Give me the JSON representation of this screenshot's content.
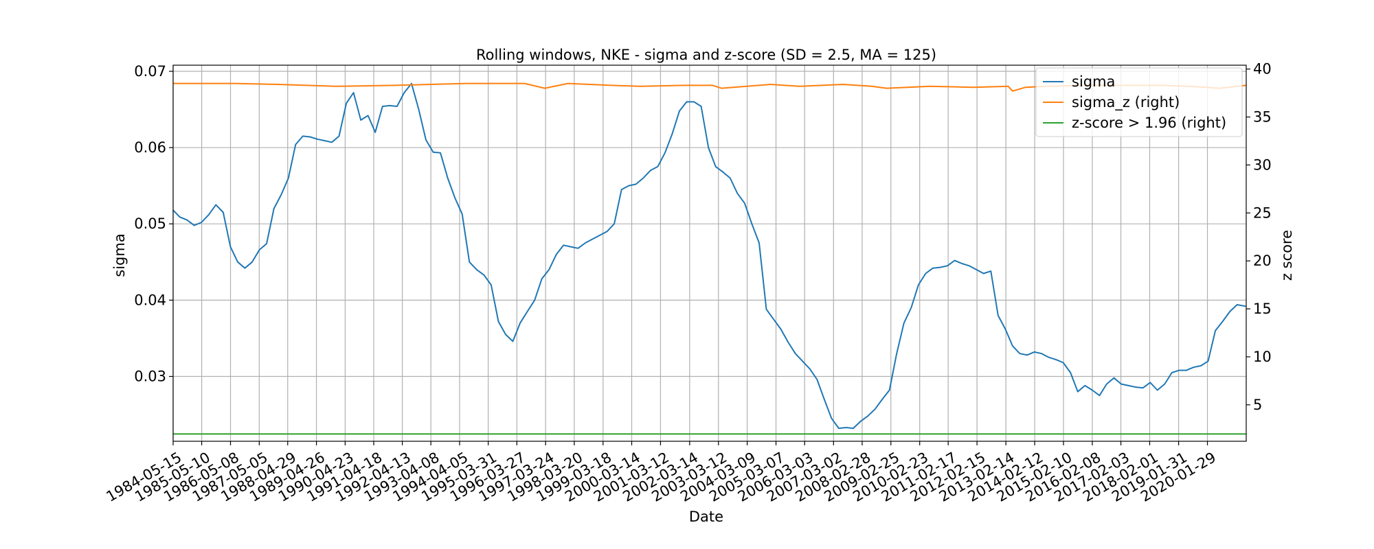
{
  "chart_data": {
    "type": "line",
    "title": "Rolling windows, NKE - sigma and z-score (SD = 2.5, MA = 125)",
    "xlabel": "Date",
    "ylabel": "sigma",
    "ylabel_right": "z score",
    "x_range": [
      "1984-05-15",
      "2021-05-31"
    ],
    "ylim": [
      0.0215,
      0.0708
    ],
    "ylim_right": [
      1.2,
      40.4
    ],
    "y_ticks": [
      0.03,
      0.04,
      0.05,
      0.06,
      0.07
    ],
    "y_tick_labels": [
      "0.03",
      "0.04",
      "0.05",
      "0.06",
      "0.07"
    ],
    "y_ticks_right": [
      5,
      10,
      15,
      20,
      25,
      30,
      35,
      40
    ],
    "y_tick_labels_right": [
      "5",
      "10",
      "15",
      "20",
      "25",
      "30",
      "35",
      "40"
    ],
    "x_tick_labels": [
      "1984-05-15",
      "1985-05-10",
      "1986-05-08",
      "1987-05-05",
      "1988-04-29",
      "1989-04-26",
      "1990-04-23",
      "1991-04-18",
      "1992-04-13",
      "1993-04-08",
      "1994-04-05",
      "1995-03-31",
      "1996-03-27",
      "1997-03-24",
      "1998-03-20",
      "1999-03-18",
      "2000-03-14",
      "2001-03-12",
      "2002-03-14",
      "2003-03-12",
      "2004-03-09",
      "2005-03-07",
      "2006-03-03",
      "2007-03-02",
      "2008-02-28",
      "2009-02-25",
      "2010-02-23",
      "2011-02-17",
      "2012-02-15",
      "2013-02-14",
      "2014-02-12",
      "2015-02-10",
      "2016-02-08",
      "2017-02-03",
      "2018-02-01",
      "2019-01-31",
      "2020-01-29"
    ],
    "grid": true,
    "legend_position": "top-right",
    "series": [
      {
        "name": "sigma",
        "axis": "left",
        "color": "#1f77b4",
        "x": [
          1984.37,
          1984.6,
          1984.85,
          1985.1,
          1985.35,
          1985.6,
          1985.85,
          1986.1,
          1986.35,
          1986.6,
          1986.85,
          1987.1,
          1987.35,
          1987.6,
          1987.85,
          1988.1,
          1988.35,
          1988.6,
          1988.85,
          1989.1,
          1989.35,
          1989.6,
          1989.85,
          1990.1,
          1990.35,
          1990.6,
          1990.85,
          1991.1,
          1991.35,
          1991.6,
          1991.85,
          1992.1,
          1992.35,
          1992.6,
          1992.85,
          1993.1,
          1993.35,
          1993.6,
          1993.85,
          1994.1,
          1994.35,
          1994.6,
          1994.85,
          1995.1,
          1995.35,
          1995.6,
          1995.85,
          1996.1,
          1996.35,
          1996.6,
          1996.85,
          1997.1,
          1997.35,
          1997.6,
          1997.85,
          1998.1,
          1998.35,
          1998.6,
          1998.85,
          1999.1,
          1999.35,
          1999.6,
          1999.85,
          2000.1,
          2000.35,
          2000.6,
          2000.85,
          2001.1,
          2001.35,
          2001.6,
          2001.85,
          2002.1,
          2002.35,
          2002.6,
          2002.85,
          2003.1,
          2003.35,
          2003.6,
          2003.85,
          2004.1,
          2004.35,
          2004.6,
          2004.85,
          2005.1,
          2005.35,
          2005.6,
          2005.85,
          2006.1,
          2006.35,
          2006.6,
          2006.85,
          2007.1,
          2007.35,
          2007.6,
          2007.85,
          2008.1,
          2008.35,
          2008.6,
          2008.85,
          2009.1,
          2009.35,
          2009.6,
          2009.85,
          2010.1,
          2010.35,
          2010.6,
          2010.85,
          2011.1,
          2011.35,
          2011.6,
          2011.85,
          2012.1,
          2012.35,
          2012.6,
          2012.85,
          2013.1,
          2013.35,
          2013.6,
          2013.85,
          2014.1,
          2014.35,
          2014.6,
          2014.85,
          2015.1,
          2015.35,
          2015.6,
          2015.85,
          2016.1,
          2016.35,
          2016.6,
          2016.85,
          2017.1,
          2017.35,
          2017.6,
          2017.85,
          2018.1,
          2018.35,
          2018.6,
          2018.85,
          2019.1,
          2019.35,
          2019.6,
          2019.85,
          2020.1,
          2020.35,
          2020.6,
          2020.85,
          2021.1,
          2021.4
        ],
        "values": [
          0.0518,
          0.0509,
          0.0505,
          0.0498,
          0.0502,
          0.0512,
          0.0525,
          0.0515,
          0.047,
          0.045,
          0.0442,
          0.045,
          0.0466,
          0.0474,
          0.052,
          0.0538,
          0.056,
          0.0604,
          0.0615,
          0.0614,
          0.0611,
          0.0609,
          0.0607,
          0.0615,
          0.0658,
          0.0672,
          0.0636,
          0.0642,
          0.062,
          0.0654,
          0.0655,
          0.0654,
          0.0672,
          0.0684,
          0.065,
          0.061,
          0.0594,
          0.0593,
          0.056,
          0.0534,
          0.0513,
          0.045,
          0.044,
          0.0433,
          0.042,
          0.0372,
          0.0355,
          0.0346,
          0.037,
          0.0385,
          0.04,
          0.0428,
          0.044,
          0.046,
          0.0472,
          0.047,
          0.0468,
          0.0475,
          0.048,
          0.0485,
          0.049,
          0.05,
          0.0545,
          0.055,
          0.0552,
          0.056,
          0.057,
          0.0575,
          0.0593,
          0.0618,
          0.0648,
          0.066,
          0.066,
          0.0654,
          0.06,
          0.0575,
          0.0568,
          0.056,
          0.054,
          0.0527,
          0.05,
          0.0475,
          0.0388,
          0.0375,
          0.0362,
          0.0345,
          0.033,
          0.032,
          0.031,
          0.0296,
          0.027,
          0.0245,
          0.0232,
          0.0233,
          0.0232,
          0.0241,
          0.0248,
          0.0257,
          0.027,
          0.0282,
          0.033,
          0.037,
          0.039,
          0.042,
          0.0435,
          0.0442,
          0.0443,
          0.0445,
          0.0452,
          0.0448,
          0.0445,
          0.044,
          0.0435,
          0.0438,
          0.038,
          0.0362,
          0.034,
          0.033,
          0.0328,
          0.0332,
          0.033,
          0.0325,
          0.0322,
          0.0318,
          0.0305,
          0.028,
          0.0288,
          0.0282,
          0.0275,
          0.029,
          0.0298,
          0.029,
          0.0288,
          0.0286,
          0.0285,
          0.0292,
          0.0282,
          0.029,
          0.0305,
          0.0308,
          0.0308,
          0.0312,
          0.0314,
          0.032,
          0.036,
          0.0372,
          0.0385,
          0.0394,
          0.0392
        ]
      },
      {
        "name": "sigma_z (right)",
        "axis": "right",
        "color": "#ff7f0e",
        "x": [
          1984.37,
          1986.5,
          1988.0,
          1990.0,
          1992.0,
          1994.5,
          1996.5,
          1997.2,
          1998.0,
          1999.5,
          2000.5,
          2002.0,
          2003.0,
          2003.3,
          2005.0,
          2006.0,
          2007.5,
          2008.5,
          2009.0,
          2010.5,
          2012.0,
          2013.2,
          2013.35,
          2013.8,
          2014.5,
          2016.0,
          2017.0,
          2018.5,
          2019.5,
          2020.5,
          2021.4
        ],
        "values": [
          38.5,
          38.5,
          38.4,
          38.2,
          38.3,
          38.5,
          38.5,
          38.0,
          38.5,
          38.3,
          38.2,
          38.3,
          38.3,
          38.0,
          38.4,
          38.2,
          38.4,
          38.2,
          38.0,
          38.2,
          38.1,
          38.2,
          37.7,
          38.1,
          38.2,
          38.3,
          38.3,
          38.3,
          38.2,
          38.0,
          38.3
        ]
      },
      {
        "name": "z-score > 1.96 (right)",
        "axis": "right",
        "color": "#2ca02c",
        "x": [
          1984.37,
          2021.4
        ],
        "values": [
          1.96,
          1.96
        ]
      }
    ]
  }
}
